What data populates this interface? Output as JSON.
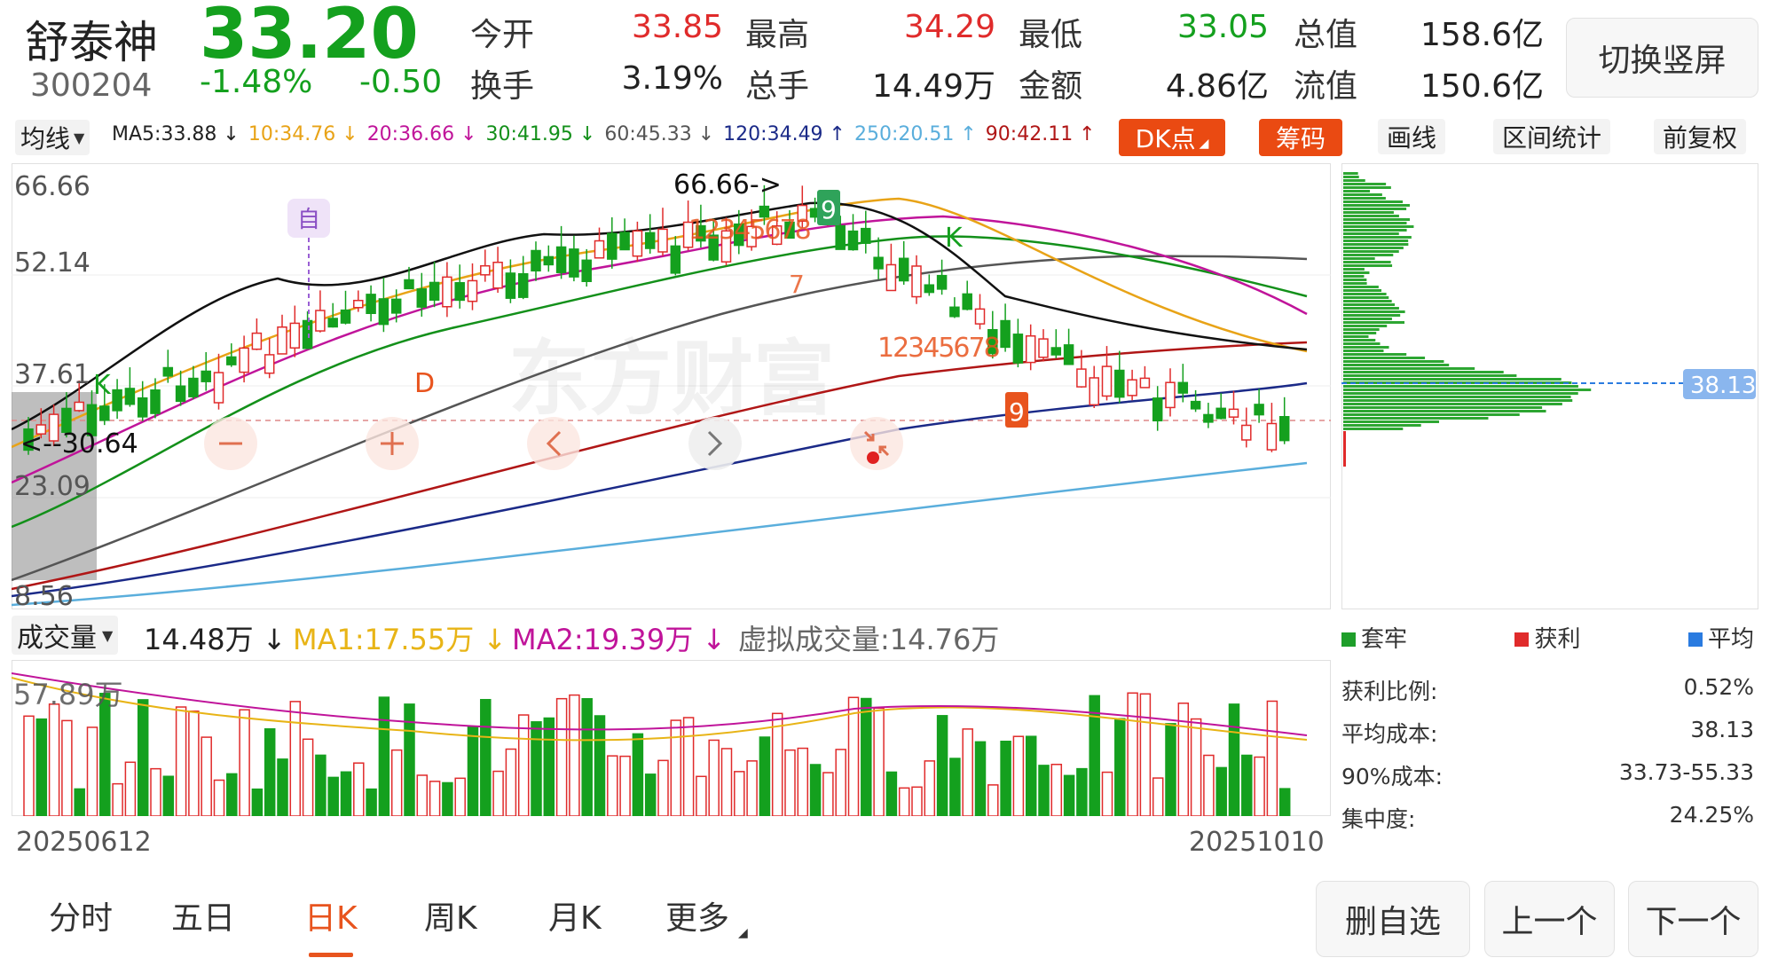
{
  "stock": {
    "name": "舒泰神",
    "code": "300204",
    "price": "33.20",
    "change_pct": "-1.48%",
    "change": "-0.50",
    "stats": [
      {
        "label": "今开",
        "value": "33.85",
        "color": "#e02b2b"
      },
      {
        "label": "最高",
        "value": "34.29",
        "color": "#e02b2b"
      },
      {
        "label": "最低",
        "value": "33.05",
        "color": "#14a01e"
      },
      {
        "label": "总值",
        "value": "158.6亿",
        "color": "#222222"
      },
      {
        "label": "换手",
        "value": "3.19%",
        "color": "#222222"
      },
      {
        "label": "总手",
        "value": "14.49万",
        "color": "#222222"
      },
      {
        "label": "金额",
        "value": "4.86亿",
        "color": "#222222"
      },
      {
        "label": "流值",
        "value": "150.6亿",
        "color": "#222222"
      }
    ],
    "switch_button": "切换竖屏"
  },
  "ma_bar": {
    "selector": "均线",
    "items": [
      {
        "text": "MA5:33.88 ↓",
        "color": "#222222"
      },
      {
        "text": "10:34.76 ↓",
        "color": "#e8a317"
      },
      {
        "text": "20:36.66 ↓",
        "color": "#c0149a"
      },
      {
        "text": "30:41.95 ↓",
        "color": "#13901a"
      },
      {
        "text": "60:45.33 ↓",
        "color": "#555555"
      },
      {
        "text": "120:34.49 ↑",
        "color": "#1b2a88"
      },
      {
        "text": "250:20.51 ↑",
        "color": "#5aaedc"
      },
      {
        "text": "90:42.11 ↑",
        "color": "#b01616"
      }
    ],
    "buttons": {
      "dk": "DK点",
      "chip": "筹码",
      "draw": "画线",
      "range": "区间统计",
      "restore": "前复权"
    }
  },
  "kline": {
    "y_labels": [
      "66.66",
      "52.14",
      "37.61",
      "23.09",
      "8.56"
    ],
    "annotations": {
      "high": "66.66->",
      "low": "<--30.64",
      "self_mark": "自",
      "k1": "K",
      "k2": "K",
      "d": "D",
      "seq_a": "12345678",
      "seq_a9": "9",
      "seq_b": "12345678",
      "seq_b9": "9",
      "seq_7": "7"
    },
    "watermark": "东方财富",
    "chip_cost_label": "38.13"
  },
  "volume": {
    "selector": "成交量",
    "value": "14.48万 ↓",
    "ma1": "MA1:17.55万 ↓",
    "ma2": "MA2:19.39万 ↓",
    "virtual": "虚拟成交量:14.76万",
    "max_label": "57.89万",
    "date_start": "20250612",
    "date_end": "20251010"
  },
  "chip": {
    "legend": [
      {
        "label": "套牢",
        "color": "#1e9e2a"
      },
      {
        "label": "获利",
        "color": "#e02b2b"
      },
      {
        "label": "平均",
        "color": "#2a7be0"
      }
    ],
    "rows": [
      {
        "label": "获利比例:",
        "value": "0.52%"
      },
      {
        "label": "平均成本:",
        "value": "38.13"
      },
      {
        "label": "90%成本:",
        "value": "33.73-55.33"
      },
      {
        "label": "集中度:",
        "value": "24.25%"
      }
    ]
  },
  "tabs": [
    "分时",
    "五日",
    "日K",
    "周K",
    "月K",
    "更多"
  ],
  "active_tab": "日K",
  "bottom_buttons": {
    "remove": "删自选",
    "prev": "上一个",
    "next": "下一个"
  },
  "nav_icons": [
    "minus-icon",
    "plus-icon",
    "arrow-left-icon",
    "arrow-right-icon",
    "collapse-icon"
  ]
}
